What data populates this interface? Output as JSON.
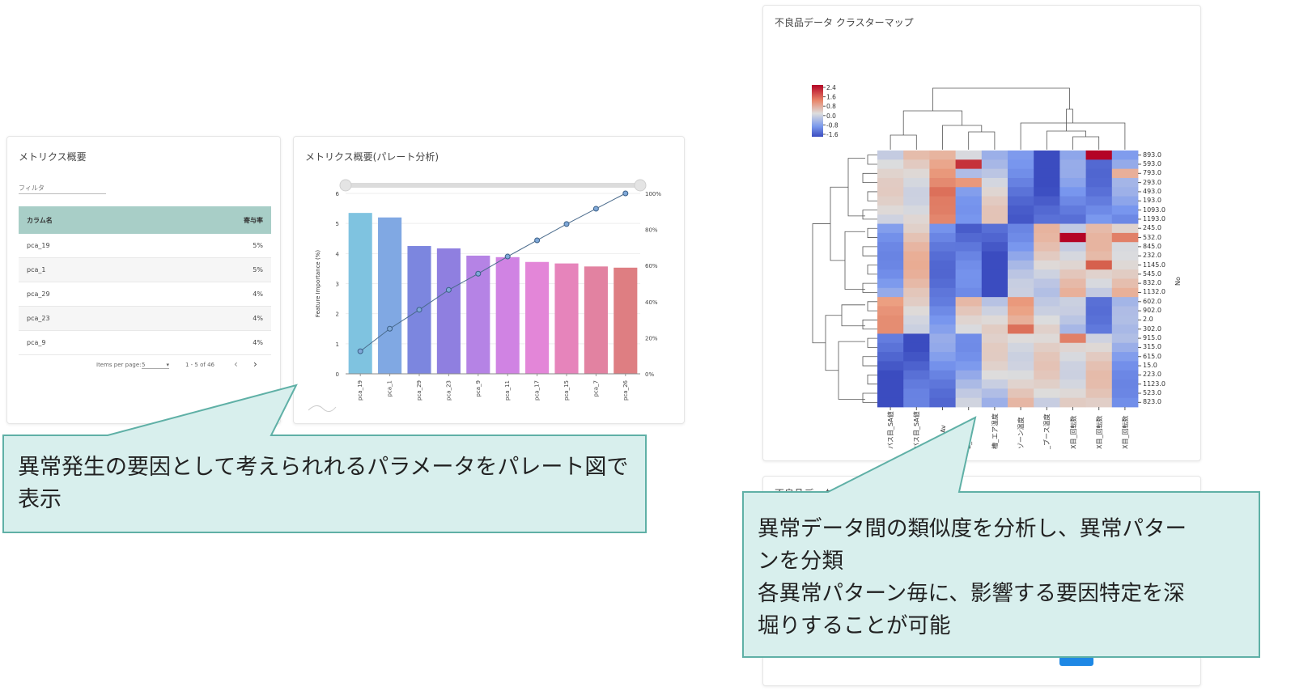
{
  "metrics_card": {
    "title": "メトリクス概要",
    "filter_placeholder": "フィルタ",
    "columns": [
      "カラム名",
      "寄与率"
    ],
    "rows": [
      {
        "name": "pca_19",
        "rate": "5%"
      },
      {
        "name": "pca_1",
        "rate": "5%"
      },
      {
        "name": "pca_29",
        "rate": "4%"
      },
      {
        "name": "pca_23",
        "rate": "4%"
      },
      {
        "name": "pca_9",
        "rate": "4%"
      }
    ],
    "items_per_page_label": "Items per page:",
    "items_per_page_value": "5",
    "range_label": "1 - 5 of 46"
  },
  "pareto_card": {
    "title": "メトリクス概要(パレート分析)",
    "chart_data": {
      "type": "bar",
      "categories": [
        "pca_19",
        "pca_1",
        "pca_29",
        "pca_23",
        "pca_9",
        "pca_11",
        "pca_17",
        "pca_15",
        "pca_7",
        "pca_26"
      ],
      "values": [
        5.35,
        5.2,
        4.25,
        4.17,
        3.93,
        3.88,
        3.72,
        3.67,
        3.57,
        3.53
      ],
      "cumulative_percent": [
        12.5,
        25,
        35.5,
        46.5,
        55.5,
        65,
        74,
        83,
        91.5,
        100
      ],
      "ylabel": "Feature Importance (%)",
      "ylim": [
        0,
        6
      ],
      "y_ticks": [
        "0",
        "1",
        "2",
        "3",
        "4",
        "5",
        "6"
      ],
      "y2_ticks": [
        "0%",
        "20%",
        "40%",
        "60%",
        "80%",
        "100%"
      ],
      "bar_colors": [
        "#7fc3e0",
        "#80a8e3",
        "#7c86df",
        "#8f7fe0",
        "#b583e5",
        "#d083e3",
        "#e386d8",
        "#e684bb",
        "#e282a1",
        "#de7e82"
      ],
      "line_color": "#4a6b8c"
    }
  },
  "callout_left": {
    "text": "異常発生の要因として考えられれるパラメータをパレート図で表示"
  },
  "clustermap_card": {
    "title": "不良品データ クラスターマップ",
    "chart_data": {
      "type": "heatmap",
      "colorbar_ticks": [
        "2.4",
        "1.6",
        "0.8",
        "0.0",
        "-0.8",
        "-1.6"
      ],
      "row_labels": [
        "893.0",
        "593.0",
        "793.0",
        "293.0",
        "493.0",
        "193.0",
        "1093.0",
        "1193.0",
        "245.0",
        "532.0",
        "845.0",
        "232.0",
        "1145.0",
        "545.0",
        "832.0",
        "1132.0",
        "602.0",
        "902.0",
        "2.0",
        "302.0",
        "915.0",
        "315.0",
        "615.0",
        "15.0",
        "223.0",
        "1123.0",
        "523.0",
        "823.0"
      ],
      "col_labels": [
        "バス目_SA値",
        "バス目_SA値",
        "温度_Av",
        "E_cc",
        "槽_エア温度",
        "ゾーン温度",
        "_ブース温度",
        "X目_回転数",
        "X目_回転数",
        "X目_回転数"
      ],
      "row_axis_label": "No"
    }
  },
  "lower_card": {
    "title_partial": "不良品データ"
  },
  "callout_right": {
    "line1": "異常データ間の類似度を分析し、異常パター",
    "line2": "ンを分類",
    "line3": "各異常パターン毎に、影響する要因特定を深",
    "line4": "堀りすることが可能"
  },
  "colors": {
    "header_teal": "#a8cec7",
    "callout_fill": "#d8efed",
    "callout_stroke": "#5fb0a6",
    "accent_blue": "#1e88e5"
  }
}
